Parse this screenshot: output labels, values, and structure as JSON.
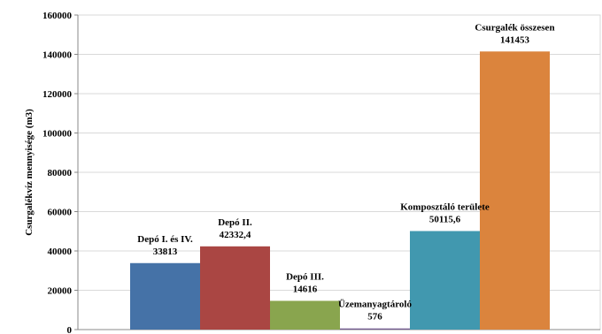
{
  "chart_data": {
    "type": "bar",
    "title": "",
    "xlabel": "",
    "ylabel": "Csurgalékvíz mennyisége (m3)",
    "ylim": [
      0,
      160000
    ],
    "yticks": [
      "0",
      "20000",
      "40000",
      "60000",
      "80000",
      "100000",
      "120000",
      "140000",
      "160000"
    ],
    "grid": true,
    "legend": "none",
    "bars": [
      {
        "name": "Depó I. és IV.",
        "label_value": "33813",
        "value": 33813,
        "color": "#4572A7"
      },
      {
        "name": "Depó II.",
        "label_value": "42332,4",
        "value": 42332.4,
        "color": "#AA4643"
      },
      {
        "name": "Depó III.",
        "label_value": "14616",
        "value": 14616,
        "color": "#89A54E"
      },
      {
        "name": "Üzemanyagtároló",
        "label_value": "576",
        "value": 576,
        "color": "#71588F"
      },
      {
        "name": "Komposztáló területe",
        "label_value": "50115,6",
        "value": 50115.6,
        "color": "#4198AF"
      },
      {
        "name": "Csurgalék összesen",
        "label_value": "141453",
        "value": 141453,
        "color": "#DB843D"
      }
    ]
  }
}
